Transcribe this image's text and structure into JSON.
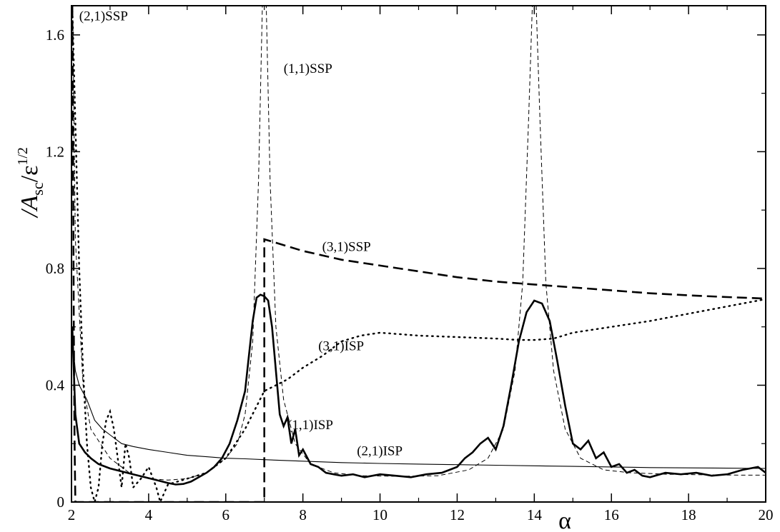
{
  "chart_data": {
    "type": "line",
    "xlabel": "α",
    "ylabel": {
      "prefix": "/A",
      "subscript": "sc",
      "middle": "/ε",
      "superscript": "1/2"
    },
    "xlim": [
      2,
      20
    ],
    "ylim": [
      0,
      1.7
    ],
    "x_ticks": [
      "2",
      "4",
      "6",
      "8",
      "10",
      "12",
      "14",
      "16",
      "18",
      "20"
    ],
    "y_ticks": [
      "0",
      "0.4",
      "0.8",
      "1.2",
      "1.6"
    ],
    "x_tick_values": [
      2,
      4,
      6,
      8,
      10,
      12,
      14,
      16,
      18,
      20
    ],
    "y_tick_values": [
      0,
      0.4,
      0.8,
      1.2,
      1.6
    ],
    "grid": false,
    "annotations": [
      {
        "text": "(2,1)SSP",
        "x": 2.2,
        "y": 1.65
      },
      {
        "text": "(1,1)SSP",
        "x": 7.5,
        "y": 1.47
      },
      {
        "text": "(3,1)SSP",
        "x": 8.5,
        "y": 0.86
      },
      {
        "text": "(3,1)ISP",
        "x": 8.4,
        "y": 0.52
      },
      {
        "text": "(1,1)ISP",
        "x": 7.6,
        "y": 0.25
      },
      {
        "text": "(2,1)ISP",
        "x": 9.4,
        "y": 0.16
      }
    ],
    "series": [
      {
        "style": "thick-solid",
        "x": [
          2.02,
          2.1,
          2.2,
          2.35,
          2.5,
          2.7,
          3.0,
          3.3,
          3.6,
          3.9,
          4.2,
          4.5,
          4.7,
          4.9,
          5.1,
          5.3,
          5.5,
          5.7,
          5.9,
          6.1,
          6.3,
          6.5,
          6.6,
          6.7,
          6.8,
          6.9,
          7.0,
          7.1,
          7.2,
          7.3,
          7.4,
          7.5,
          7.6,
          7.7,
          7.8,
          7.9,
          8.0,
          8.2,
          8.4,
          8.6,
          8.8,
          9.0,
          9.3,
          9.6,
          10.0,
          10.4,
          10.8,
          11.2,
          11.6,
          12.0,
          12.2,
          12.4,
          12.6,
          12.8,
          13.0,
          13.2,
          13.4,
          13.6,
          13.8,
          14.0,
          14.2,
          14.4,
          14.6,
          14.8,
          15.0,
          15.2,
          15.4,
          15.6,
          15.8,
          16.0,
          16.2,
          16.4,
          16.6,
          16.8,
          17.0,
          17.4,
          17.8,
          18.2,
          18.6,
          19.0,
          19.4,
          19.8,
          20.0
        ],
        "y": [
          0.6,
          0.3,
          0.2,
          0.17,
          0.15,
          0.13,
          0.115,
          0.105,
          0.095,
          0.085,
          0.075,
          0.065,
          0.06,
          0.062,
          0.07,
          0.085,
          0.1,
          0.12,
          0.15,
          0.2,
          0.28,
          0.38,
          0.5,
          0.62,
          0.7,
          0.71,
          0.705,
          0.69,
          0.6,
          0.45,
          0.3,
          0.26,
          0.29,
          0.2,
          0.25,
          0.16,
          0.18,
          0.13,
          0.12,
          0.1,
          0.095,
          0.09,
          0.095,
          0.085,
          0.095,
          0.09,
          0.085,
          0.095,
          0.1,
          0.12,
          0.15,
          0.17,
          0.2,
          0.22,
          0.18,
          0.26,
          0.4,
          0.55,
          0.65,
          0.69,
          0.68,
          0.62,
          0.48,
          0.33,
          0.2,
          0.18,
          0.21,
          0.15,
          0.17,
          0.12,
          0.13,
          0.1,
          0.11,
          0.09,
          0.085,
          0.1,
          0.095,
          0.1,
          0.09,
          0.095,
          0.11,
          0.12,
          0.1
        ]
      },
      {
        "style": "thin-solid",
        "x": [
          2.03,
          2.1,
          2.2,
          2.4,
          2.6,
          2.8,
          3.0,
          3.3,
          3.6,
          4.0,
          4.5,
          5.0,
          5.5,
          6.0,
          6.5,
          7.0,
          8.0,
          9.0,
          10.0,
          11.0,
          12.0,
          13.0,
          14.0,
          15.0,
          16.0,
          17.0,
          18.0,
          19.0,
          20.0
        ],
        "y": [
          0.55,
          0.45,
          0.4,
          0.35,
          0.28,
          0.25,
          0.23,
          0.2,
          0.19,
          0.18,
          0.17,
          0.16,
          0.155,
          0.15,
          0.148,
          0.145,
          0.14,
          0.135,
          0.132,
          0.13,
          0.128,
          0.126,
          0.124,
          0.122,
          0.12,
          0.118,
          0.117,
          0.116,
          0.115
        ]
      },
      {
        "style": "thin-dashed",
        "x": [
          2.03,
          2.1,
          2.3,
          2.5,
          3.0,
          3.5,
          4.0,
          4.5,
          5.0,
          5.5,
          6.0,
          6.3,
          6.5,
          6.7,
          6.85,
          6.95,
          7.0
        ],
        "y": [
          1.7,
          0.9,
          0.4,
          0.25,
          0.15,
          0.1,
          0.08,
          0.075,
          0.08,
          0.1,
          0.15,
          0.2,
          0.3,
          0.55,
          1.1,
          1.7,
          1.7
        ]
      },
      {
        "style": "thin-dashed",
        "x": [
          7.0,
          7.05,
          7.15,
          7.3,
          7.5,
          7.8,
          8.2,
          8.8,
          9.5,
          10.5,
          11.5,
          12.3,
          12.8,
          13.2,
          13.5,
          13.7,
          13.85,
          13.95
        ],
        "y": [
          1.7,
          1.7,
          1.1,
          0.6,
          0.35,
          0.2,
          0.13,
          0.1,
          0.09,
          0.088,
          0.09,
          0.11,
          0.15,
          0.25,
          0.45,
          0.75,
          1.3,
          1.7
        ]
      },
      {
        "style": "thin-dashed",
        "x": [
          14.05,
          14.15,
          14.3,
          14.5,
          14.8,
          15.2,
          15.8,
          16.5,
          17.5,
          18.5,
          19.5,
          20.0
        ],
        "y": [
          1.7,
          1.3,
          0.75,
          0.45,
          0.25,
          0.15,
          0.11,
          0.1,
          0.095,
          0.093,
          0.092,
          0.092
        ]
      },
      {
        "style": "thick-dashed",
        "x": [
          2.02,
          2.04,
          2.06,
          2.08,
          2.1,
          2.2,
          2.4,
          7.0,
          7.0,
          7.0,
          7.5,
          8.0,
          9.0,
          10.0,
          11.0,
          12.0,
          13.0,
          14.0,
          15.0,
          16.0,
          17.0,
          18.0,
          19.0,
          20.0
        ],
        "y": [
          1.7,
          1.2,
          0.6,
          0.2,
          0.0,
          0.0,
          0.0,
          0.0,
          0.0,
          0.9,
          0.88,
          0.86,
          0.83,
          0.81,
          0.79,
          0.77,
          0.755,
          0.745,
          0.735,
          0.725,
          0.715,
          0.708,
          0.702,
          0.697
        ]
      },
      {
        "style": "dotted",
        "x": [
          2.02,
          2.1,
          2.2,
          2.3,
          2.4,
          2.5,
          2.6,
          2.7,
          2.8,
          2.9,
          3.0,
          3.1,
          3.2,
          3.3,
          3.4,
          3.5,
          3.6,
          3.8,
          4.0,
          4.2,
          4.3,
          4.5,
          5.0,
          5.5,
          6.0,
          6.5,
          7.0,
          7.3,
          7.6,
          8.0,
          8.5,
          9.0,
          9.5,
          10.0,
          10.5,
          11.0,
          12.0,
          13.0,
          13.6,
          14.0,
          14.5,
          15.0,
          16.0,
          17.0,
          18.0,
          19.0,
          20.0
        ],
        "y": [
          1.7,
          1.3,
          0.8,
          0.45,
          0.2,
          0.05,
          0.0,
          0.05,
          0.2,
          0.28,
          0.31,
          0.25,
          0.15,
          0.05,
          0.2,
          0.15,
          0.05,
          0.08,
          0.12,
          0.05,
          0.0,
          0.06,
          0.08,
          0.1,
          0.15,
          0.25,
          0.38,
          0.4,
          0.42,
          0.46,
          0.5,
          0.55,
          0.57,
          0.58,
          0.575,
          0.57,
          0.565,
          0.56,
          0.555,
          0.555,
          0.56,
          0.58,
          0.6,
          0.62,
          0.645,
          0.67,
          0.695
        ]
      }
    ]
  }
}
